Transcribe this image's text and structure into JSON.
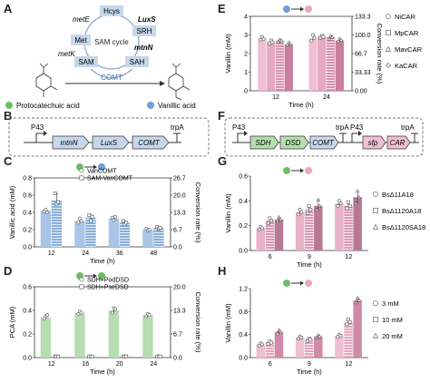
{
  "panel_letters": [
    "A",
    "B",
    "C",
    "D",
    "E",
    "F",
    "G",
    "H"
  ],
  "panel_a": {
    "cycle_label": "SAM cycle",
    "nodes": [
      "Hcys",
      "SRH",
      "SAH",
      "SAM",
      "Met"
    ],
    "enzymes": [
      "metE",
      "LuxS",
      "mtnN",
      "metK"
    ],
    "comt_label": "COMT",
    "substrate_label": "Protocatechuic acid",
    "product_label": "Vanillic acid",
    "colors": {
      "node_fill": "#c6d7ea",
      "green_dot": "#6cbf63",
      "blue_dot": "#6aa1d6",
      "pink_dot": "#e9a8c2"
    }
  },
  "panel_b": {
    "promoter": "P43",
    "genes": [
      "mtnN",
      "LuxS",
      "COMT"
    ],
    "terminator": "trpA"
  },
  "panel_f": {
    "promoter1": "P43",
    "genes1": [
      "SDH",
      "DSD",
      "COMT"
    ],
    "terminator1": "trpA",
    "promoter2": "P43",
    "genes2": [
      "sfp",
      "CAR"
    ],
    "terminator2": "trpA"
  },
  "chart_data": [
    {
      "id": "C",
      "type": "bar",
      "xlabel": "Time (h)",
      "ylabel": "Vanillic acid (mM)",
      "y2label": "Conversion rate (%)",
      "categories": [
        "12",
        "24",
        "36",
        "48"
      ],
      "ylim": [
        0,
        0.8
      ],
      "yticks": [
        "0.0",
        "0.2",
        "0.4",
        "0.6",
        "0.8"
      ],
      "y2ticks": [
        "0.0",
        "6.7",
        "13.3",
        "20.0",
        "26.7"
      ],
      "legend": [
        "VanCOMT",
        "SAM-VanCOMT"
      ],
      "series": [
        {
          "name": "VanCOMT",
          "values": [
            0.42,
            0.3,
            0.33,
            0.2
          ],
          "points": [
            [
              0.41,
              0.43,
              0.4
            ],
            [
              0.28,
              0.33,
              0.3
            ],
            [
              0.34,
              0.31,
              0.35
            ],
            [
              0.21,
              0.19,
              0.2
            ]
          ],
          "color": "#a9c6e8",
          "hatch": false
        },
        {
          "name": "SAM-VanCOMT",
          "values": [
            0.54,
            0.34,
            0.28,
            0.22
          ],
          "points": [
            [
              0.62,
              0.5,
              0.52
            ],
            [
              0.37,
              0.3,
              0.35
            ],
            [
              0.3,
              0.26,
              0.28
            ],
            [
              0.23,
              0.21,
              0.22
            ]
          ],
          "color": "#8ab0d8",
          "hatch": true
        }
      ]
    },
    {
      "id": "D",
      "type": "bar",
      "xlabel": "Time (h)",
      "ylabel": "PCA (mM)",
      "y2label": "Conversion rate (%)",
      "categories": [
        "12",
        "16",
        "20",
        "24"
      ],
      "ylim": [
        0,
        0.6
      ],
      "yticks": [
        "0.0",
        "0.2",
        "0.4",
        "0.6"
      ],
      "y2ticks": [
        "0.0",
        "6.7",
        "13.3",
        "20.0"
      ],
      "legend": [
        "SDH+PodDSD",
        "SDH+PseDSD"
      ],
      "series": [
        {
          "name": "SDH+PodDSD",
          "values": [
            0.34,
            0.38,
            0.4,
            0.36
          ],
          "points": [
            [
              0.33,
              0.35,
              0.36
            ],
            [
              0.37,
              0.39,
              0.38
            ],
            [
              0.38,
              0.42,
              0.41
            ],
            [
              0.35,
              0.37,
              0.36
            ]
          ],
          "color": "#b5ddb0",
          "hatch": false
        },
        {
          "name": "SDH+PseDSD",
          "values": [
            0.01,
            0.01,
            0.01,
            0.01
          ],
          "points": [
            [
              0.01,
              0.01,
              0.01
            ],
            [
              0.01,
              0.01,
              0.01
            ],
            [
              0.01,
              0.01,
              0.01
            ],
            [
              0.01,
              0.01,
              0.01
            ]
          ],
          "color": "#8fcf8a",
          "hatch": true
        }
      ]
    },
    {
      "id": "E",
      "type": "bar",
      "xlabel": "Time (h)",
      "ylabel": "Vanillin (mM)",
      "y2label": "Conversion rate (%)",
      "categories": [
        "12",
        "24"
      ],
      "ylim": [
        0,
        4
      ],
      "yticks": [
        "0",
        "1",
        "2",
        "3",
        "4"
      ],
      "y2ticks": [
        "0.00",
        "33.33",
        "66.7",
        "100.0",
        "133.3"
      ],
      "legend": [
        "NiCAR",
        "MpCAR",
        "MavCAR",
        "KaCAR"
      ],
      "series": [
        {
          "name": "NiCAR",
          "values": [
            2.8,
            2.8
          ],
          "points": [
            [
              2.75,
              2.9,
              2.78
            ],
            [
              2.7,
              3.0,
              2.85
            ]
          ],
          "color": "#efbfd4",
          "hatch": false
        },
        {
          "name": "MpCAR",
          "values": [
            2.6,
            2.9
          ],
          "points": [
            [
              2.55,
              2.7,
              2.6
            ],
            [
              2.85,
              2.95,
              2.9
            ]
          ],
          "color": "#e5a7c1",
          "hatch": false
        },
        {
          "name": "MavCAR",
          "values": [
            2.7,
            2.9
          ],
          "points": [
            [
              2.65,
              2.75,
              2.7
            ],
            [
              2.8,
              2.95,
              2.9
            ]
          ],
          "color": "#d891ae",
          "hatch": true
        },
        {
          "name": "KaCAR",
          "values": [
            2.5,
            2.7
          ],
          "points": [
            [
              2.45,
              2.6,
              2.5
            ],
            [
              2.65,
              2.8,
              2.7
            ]
          ],
          "color": "#c97e9d",
          "hatch": false
        }
      ]
    },
    {
      "id": "G",
      "type": "bar",
      "xlabel": "Time (h)",
      "ylabel": "Vanillin (mM)",
      "categories": [
        "6",
        "9",
        "12"
      ],
      "ylim": [
        0,
        0.6
      ],
      "yticks": [
        "0.0",
        "0.2",
        "0.4",
        "0.6"
      ],
      "legend": [
        "BsΔ11A18",
        "BsΔ1120A18",
        "BsΔ1120SA18"
      ],
      "series": [
        {
          "name": "BsΔ11A18",
          "values": [
            0.18,
            0.31,
            0.38
          ],
          "points": [
            [
              0.17,
              0.19,
              0.18
            ],
            [
              0.29,
              0.33,
              0.31
            ],
            [
              0.36,
              0.4,
              0.38
            ]
          ],
          "color": "#e8b3c8",
          "hatch": false
        },
        {
          "name": "BsΔ1120A18",
          "values": [
            0.24,
            0.33,
            0.36
          ],
          "points": [
            [
              0.22,
              0.26,
              0.24
            ],
            [
              0.3,
              0.36,
              0.33
            ],
            [
              0.34,
              0.39,
              0.36
            ]
          ],
          "color": "#d998b3",
          "hatch": true
        },
        {
          "name": "BsΔ1120SA18",
          "values": [
            0.25,
            0.36,
            0.43
          ],
          "points": [
            [
              0.24,
              0.27,
              0.25
            ],
            [
              0.33,
              0.41,
              0.36
            ],
            [
              0.38,
              0.48,
              0.43
            ]
          ],
          "color": "#b87995",
          "hatch": false
        }
      ]
    },
    {
      "id": "H",
      "type": "bar",
      "xlabel": "Time (h)",
      "ylabel": "Vanillin (mM)",
      "categories": [
        "6",
        "9",
        "12"
      ],
      "ylim": [
        0,
        1.2
      ],
      "yticks": [
        "0.0",
        "0.4",
        "0.8",
        "1.2"
      ],
      "legend": [
        "3 mM",
        "10 mM",
        "20 mM"
      ],
      "series": [
        {
          "name": "3 mM",
          "values": [
            0.23,
            0.35,
            0.38
          ],
          "points": [
            [
              0.21,
              0.25,
              0.23
            ],
            [
              0.33,
              0.37,
              0.35
            ],
            [
              0.36,
              0.4,
              0.38
            ]
          ],
          "color": "#eebfd2",
          "hatch": false
        },
        {
          "name": "10 mM",
          "values": [
            0.26,
            0.31,
            0.62
          ],
          "points": [
            [
              0.24,
              0.28,
              0.26
            ],
            [
              0.29,
              0.33,
              0.31
            ],
            [
              0.58,
              0.66,
              0.62
            ]
          ],
          "color": "#e2a8c0",
          "hatch": true
        },
        {
          "name": "20 mM",
          "values": [
            0.45,
            0.37,
            1.0
          ],
          "points": [
            [
              0.42,
              0.48,
              0.45
            ],
            [
              0.35,
              0.39,
              0.37
            ],
            [
              0.96,
              1.04,
              1.0
            ]
          ],
          "color": "#cf8aa8",
          "hatch": false
        }
      ]
    }
  ]
}
